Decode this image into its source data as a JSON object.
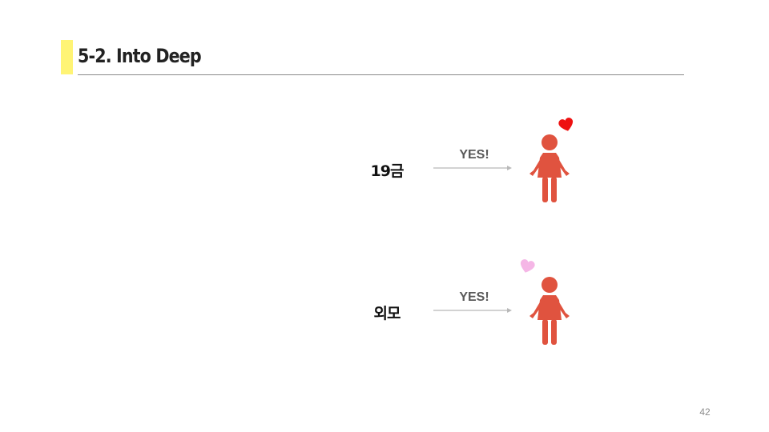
{
  "slide": {
    "title": "5-2. Into Deep",
    "page_number": "42"
  },
  "rows": [
    {
      "label": "19금",
      "arrow_text": "YES!",
      "heart_color": "#ee1111",
      "figure_icon": "woman-icon",
      "heart_icon": "heart-icon"
    },
    {
      "label": "외모",
      "arrow_text": "YES!",
      "heart_color": "#f5b6e6",
      "figure_icon": "woman-icon",
      "heart_icon": "heart-icon"
    }
  ],
  "colors": {
    "accent": "#fff475",
    "rule": "#8a8a8a",
    "figure": "#e0533f",
    "arrow": "#b8b8b8",
    "arrow_text": "#595959"
  }
}
